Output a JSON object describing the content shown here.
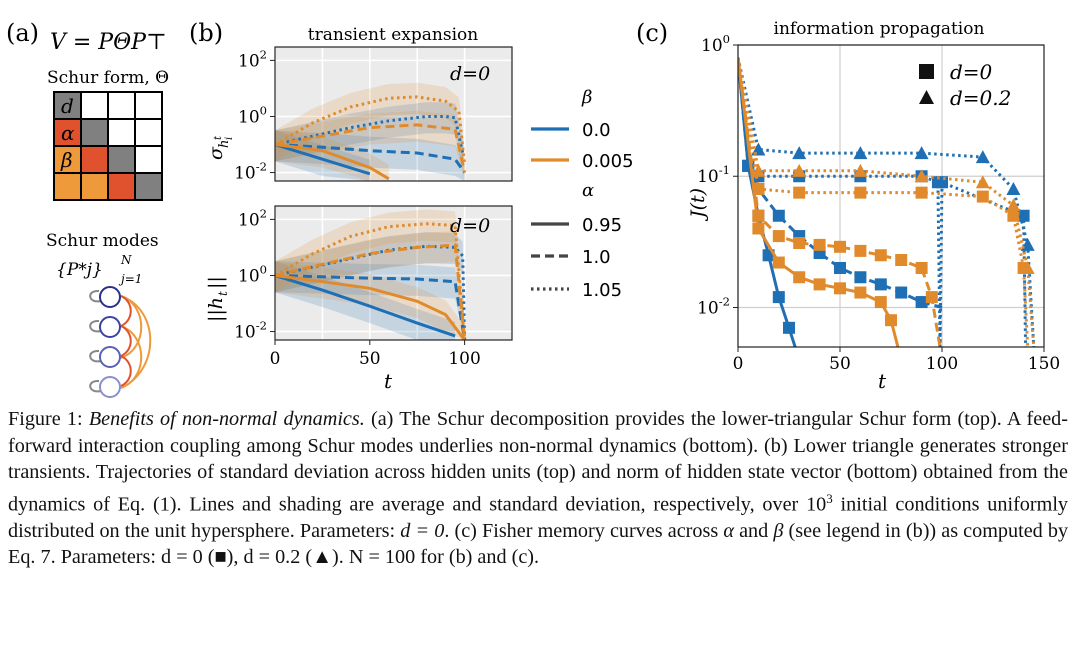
{
  "panel_a": {
    "label": "(a)",
    "equation": "V = PΘP⊤",
    "schur_form_title": "Schur form, Θ",
    "cell_labels": {
      "diag": "d",
      "sub1": "α",
      "sub2": "β"
    },
    "colors": {
      "diag": "#808080",
      "sub1": "#e0522d",
      "sub2": "#ef9a3a",
      "upper": "#ffffff",
      "grid": "#000000"
    },
    "schur_modes_title": "Schur modes",
    "schur_modes_set": "{P*j}",
    "schur_modes_sup": "N",
    "schur_modes_sub": "j=1"
  },
  "legend_b": {
    "beta_title": "β",
    "beta_entries": [
      {
        "label": "0.0",
        "color": "#1f6fb4"
      },
      {
        "label": "0.005",
        "color": "#e08a2c"
      }
    ],
    "alpha_title": "α",
    "alpha_entries": [
      {
        "label": "0.95",
        "style": "solid"
      },
      {
        "label": "1.0",
        "style": "dashed"
      },
      {
        "label": "1.05",
        "style": "dotted"
      }
    ]
  },
  "chart_data": [
    {
      "panel": "(b) top",
      "type": "line",
      "title": "transient expansion",
      "annotation": "d=0",
      "xlabel": "",
      "ylabel": "σ_{h_i^t}",
      "xlim": [
        0,
        125
      ],
      "ylim": [
        0.005,
        300
      ],
      "yscale": "log",
      "yticks": [
        "10^-2",
        "10^0",
        "10^2"
      ],
      "grid": true,
      "series": [
        {
          "beta": "0.0",
          "alpha": "0.95",
          "x": [
            0,
            25,
            50
          ],
          "y": [
            0.1,
            0.03,
            0.009
          ]
        },
        {
          "beta": "0.0",
          "alpha": "1.0",
          "x": [
            0,
            25,
            50,
            75,
            95,
            100
          ],
          "y": [
            0.1,
            0.08,
            0.06,
            0.05,
            0.03,
            0.01
          ]
        },
        {
          "beta": "0.0",
          "alpha": "1.05",
          "x": [
            0,
            20,
            40,
            60,
            80,
            90,
            95,
            99
          ],
          "y": [
            0.1,
            0.2,
            0.4,
            0.7,
            1.0,
            1.0,
            0.9,
            0.05
          ]
        },
        {
          "beta": "0.005",
          "alpha": "0.95",
          "x": [
            0,
            25,
            50,
            60
          ],
          "y": [
            0.1,
            0.06,
            0.015,
            0.006
          ]
        },
        {
          "beta": "0.005",
          "alpha": "1.0",
          "x": [
            0,
            25,
            50,
            75,
            95,
            100
          ],
          "y": [
            0.1,
            0.2,
            0.4,
            0.5,
            0.35,
            0.01
          ]
        },
        {
          "beta": "0.005",
          "alpha": "1.05",
          "x": [
            0,
            20,
            40,
            60,
            75,
            90,
            97,
            100
          ],
          "y": [
            0.1,
            0.6,
            2.2,
            4.5,
            5.0,
            3.5,
            1.5,
            0.02
          ]
        }
      ]
    },
    {
      "panel": "(b) bottom",
      "type": "line",
      "annotation": "d=0",
      "xlabel": "t",
      "ylabel": "||h_t||",
      "xlim": [
        0,
        125
      ],
      "ylim": [
        0.005,
        300
      ],
      "yscale": "log",
      "xticks": [
        0,
        50,
        100
      ],
      "yticks": [
        "10^-2",
        "10^0",
        "10^2"
      ],
      "grid": true,
      "series": [
        {
          "beta": "0.0",
          "alpha": "0.95",
          "x": [
            0,
            25,
            50,
            75,
            95
          ],
          "y": [
            1,
            0.3,
            0.08,
            0.02,
            0.007
          ]
        },
        {
          "beta": "0.0",
          "alpha": "1.0",
          "x": [
            0,
            25,
            50,
            75,
            95,
            100
          ],
          "y": [
            1,
            0.9,
            0.8,
            0.75,
            0.6,
            0.005
          ]
        },
        {
          "beta": "0.0",
          "alpha": "1.05",
          "x": [
            0,
            20,
            40,
            60,
            80,
            95,
            99,
            100
          ],
          "y": [
            1,
            2,
            4,
            8,
            11,
            10,
            5,
            0.005
          ]
        },
        {
          "beta": "0.005",
          "alpha": "0.95",
          "x": [
            0,
            25,
            50,
            75,
            90,
            100
          ],
          "y": [
            1,
            0.6,
            0.35,
            0.12,
            0.04,
            0.005
          ]
        },
        {
          "beta": "0.005",
          "alpha": "1.0",
          "x": [
            0,
            25,
            50,
            75,
            95,
            100
          ],
          "y": [
            1,
            2.5,
            6,
            10,
            12,
            0.005
          ]
        },
        {
          "beta": "0.005",
          "alpha": "1.05",
          "x": [
            0,
            20,
            40,
            60,
            80,
            95,
            100
          ],
          "y": [
            1,
            6,
            25,
            55,
            70,
            60,
            0.005
          ]
        }
      ]
    },
    {
      "panel": "(c)",
      "type": "line",
      "title": "information propagation",
      "xlabel": "t",
      "ylabel": "J(t)",
      "xlim": [
        0,
        150
      ],
      "ylim": [
        0.005,
        1
      ],
      "yscale": "log",
      "xticks": [
        0,
        50,
        100,
        150
      ],
      "yticks": [
        "10^-2",
        "10^-1",
        "10^0"
      ],
      "grid": true,
      "legend": [
        {
          "marker": "square",
          "label": "d=0"
        },
        {
          "marker": "triangle",
          "label": "d=0.2"
        }
      ],
      "series": [
        {
          "beta": "0.0",
          "alpha": "0.95",
          "d": "0",
          "x": [
            0,
            5,
            10,
            15,
            20,
            25,
            30
          ],
          "y": [
            0.8,
            0.12,
            0.05,
            0.025,
            0.012,
            0.007,
            0.004
          ]
        },
        {
          "beta": "0.0",
          "alpha": "1.0",
          "d": "0",
          "x": [
            0,
            5,
            10,
            20,
            30,
            40,
            50,
            60,
            70,
            80,
            90,
            100
          ],
          "y": [
            0.8,
            0.12,
            0.08,
            0.05,
            0.035,
            0.026,
            0.02,
            0.017,
            0.015,
            0.013,
            0.011,
            0.01
          ]
        },
        {
          "beta": "0.0",
          "alpha": "1.05",
          "d": "0",
          "x": [
            0,
            5,
            10,
            30,
            60,
            90,
            98,
            99,
            100,
            140,
            141
          ],
          "y": [
            0.8,
            0.12,
            0.1,
            0.1,
            0.1,
            0.1,
            0.09,
            0.005,
            0.09,
            0.05,
            0.005
          ]
        },
        {
          "beta": "0.005",
          "alpha": "0.95",
          "d": "0",
          "x": [
            0,
            10,
            20,
            30,
            40,
            50,
            60,
            70,
            75,
            80
          ],
          "y": [
            0.8,
            0.04,
            0.022,
            0.017,
            0.015,
            0.014,
            0.013,
            0.011,
            0.008,
            0.004
          ]
        },
        {
          "beta": "0.005",
          "alpha": "1.0",
          "d": "0",
          "x": [
            0,
            10,
            20,
            30,
            40,
            50,
            60,
            70,
            80,
            90,
            95,
            99
          ],
          "y": [
            0.8,
            0.05,
            0.035,
            0.031,
            0.03,
            0.029,
            0.027,
            0.025,
            0.023,
            0.02,
            0.012,
            0.005
          ]
        },
        {
          "beta": "0.005",
          "alpha": "1.05",
          "d": "0",
          "x": [
            0,
            10,
            30,
            60,
            90,
            120,
            135,
            140,
            142
          ],
          "y": [
            0.8,
            0.08,
            0.075,
            0.075,
            0.075,
            0.07,
            0.05,
            0.02,
            0.005
          ]
        },
        {
          "beta": "0.0",
          "alpha": "1.05",
          "d": "0.2",
          "x": [
            0,
            10,
            30,
            60,
            90,
            120,
            135,
            142,
            145
          ],
          "y": [
            0.8,
            0.16,
            0.15,
            0.15,
            0.15,
            0.14,
            0.08,
            0.03,
            0.005
          ]
        },
        {
          "beta": "0.005",
          "alpha": "1.05",
          "d": "0.2",
          "x": [
            0,
            10,
            30,
            60,
            90,
            120,
            135,
            142,
            145
          ],
          "y": [
            0.8,
            0.11,
            0.11,
            0.11,
            0.1,
            0.09,
            0.06,
            0.02,
            0.005
          ]
        }
      ]
    }
  ],
  "axis_texts": {
    "b_top_title": "transient expansion",
    "b_annot": "d=0",
    "b_ylabel_top": "σ",
    "b_ylabel_top_sub": "h",
    "b_ylabel_top_subsub": "i",
    "b_ylabel_top_subsup": "t",
    "b_ylabel_bottom": "||h",
    "b_ylabel_bottom_sub": "t",
    "b_ylabel_bottom_end": "||",
    "b_xlabel": "t",
    "b_label": "(b)",
    "c_label": "(c)",
    "c_title": "information propagation",
    "c_ylabel": "J(t)",
    "c_xlabel": "t",
    "legend_d0": "d=0",
    "legend_d02": "d=0.2"
  },
  "caption": {
    "fig": "Figure 1:",
    "title": "Benefits of non-normal dynamics.",
    "text1": "(a) The Schur decomposition provides the lower-triangular Schur form (top). A feed-forward interaction coupling among Schur modes underlies non-normal dynamics (bottom). (b) Lower triangle generates stronger transients. Trajectories of standard deviation across hidden units (top) and norm of hidden state vector (bottom) obtained from the dynamics of Eq. (1). Lines and shading are average and standard deviation, respectively, over",
    "ten": "10",
    "exp": "3",
    "text2": "initial conditions uniformly distributed on the unit hypersphere. Parameters:",
    "d_eq0": "d = 0",
    "text3": ". (c) Fisher memory curves across",
    "alpha": "α",
    "and": "and",
    "beta": "β",
    "text4": "(see legend in (b)) as computed by Eq. 7. Parameters:",
    "d0sq": "d = 0 (■),",
    "d02": "d = 0.2 (▲).",
    "N": "N = 100 for (b) and (c)."
  }
}
